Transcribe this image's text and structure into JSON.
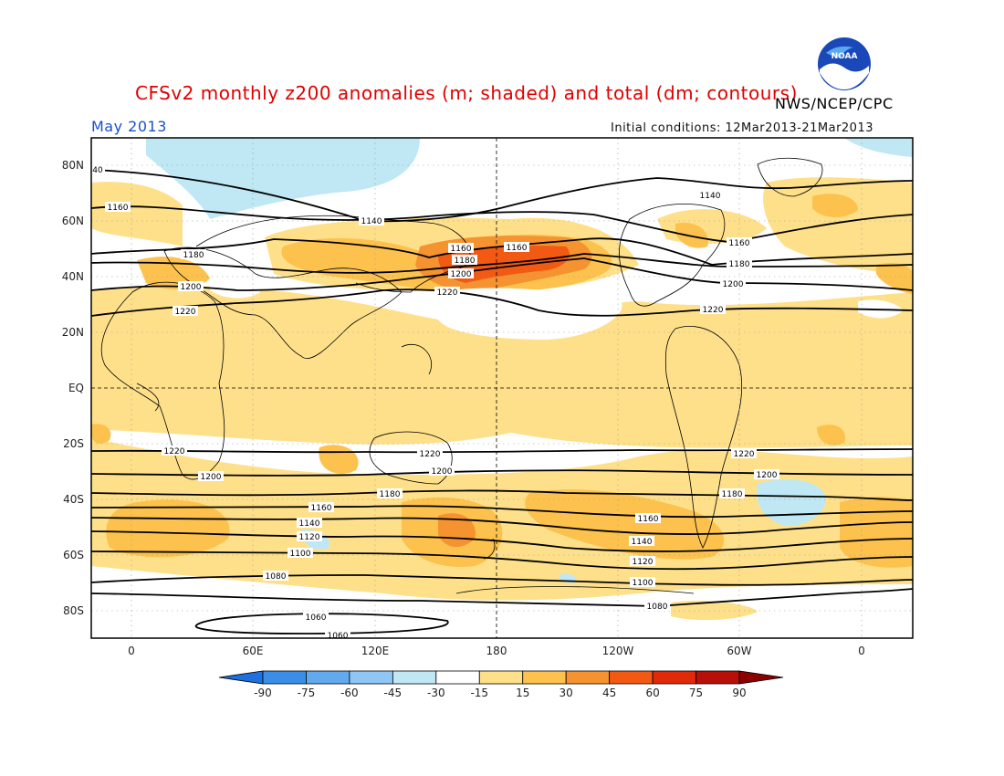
{
  "title": "CFSv2 monthly z200 anomalies (m; shaded) and total (dm; contours)",
  "agency": "NWS/NCEP/CPC",
  "period": "May 2013",
  "initial_conditions": "Initial conditions: 12Mar2013-21Mar2013",
  "logo_text": "NOAA",
  "lat_labels": [
    "80N",
    "60N",
    "40N",
    "20N",
    "EQ",
    "20S",
    "40S",
    "60S",
    "80S"
  ],
  "lon_labels": [
    "0",
    "60E",
    "120E",
    "180",
    "120W",
    "60W",
    "0"
  ],
  "colorbar": {
    "labels": [
      "-90",
      "-75",
      "-60",
      "-45",
      "-30",
      "-15",
      "15",
      "30",
      "45",
      "60",
      "75",
      "90"
    ],
    "colors": [
      "#1e6fe0",
      "#3a8ee8",
      "#62a9ee",
      "#8fc6f4",
      "#bfe8f4",
      "#ffffff",
      "#ffe08a",
      "#fcc24d",
      "#f59331",
      "#f25a14",
      "#e02a0a",
      "#b81008",
      "#8c0000"
    ]
  },
  "contour_labels": [
    {
      "text": "40"
    },
    {
      "text": "1160"
    },
    {
      "text": "1140"
    },
    {
      "text": "1140"
    },
    {
      "text": "1160"
    },
    {
      "text": "1180"
    },
    {
      "text": "1160"
    },
    {
      "text": "1200"
    },
    {
      "text": "1180"
    },
    {
      "text": "1220"
    },
    {
      "text": "1160"
    },
    {
      "text": "1180"
    },
    {
      "text": "1200"
    },
    {
      "text": "1220"
    },
    {
      "text": "1220"
    },
    {
      "text": "1220"
    },
    {
      "text": "1220"
    },
    {
      "text": "1220"
    },
    {
      "text": "1200"
    },
    {
      "text": "1200"
    },
    {
      "text": "1200"
    },
    {
      "text": "1180"
    },
    {
      "text": "1180"
    },
    {
      "text": "1160"
    },
    {
      "text": "1160"
    },
    {
      "text": "1140"
    },
    {
      "text": "1140"
    },
    {
      "text": "1120"
    },
    {
      "text": "1120"
    },
    {
      "text": "1100"
    },
    {
      "text": "1100"
    },
    {
      "text": "1080"
    },
    {
      "text": "1080"
    },
    {
      "text": "1060"
    },
    {
      "text": "1060"
    },
    {
      "text": "1200"
    }
  ]
}
